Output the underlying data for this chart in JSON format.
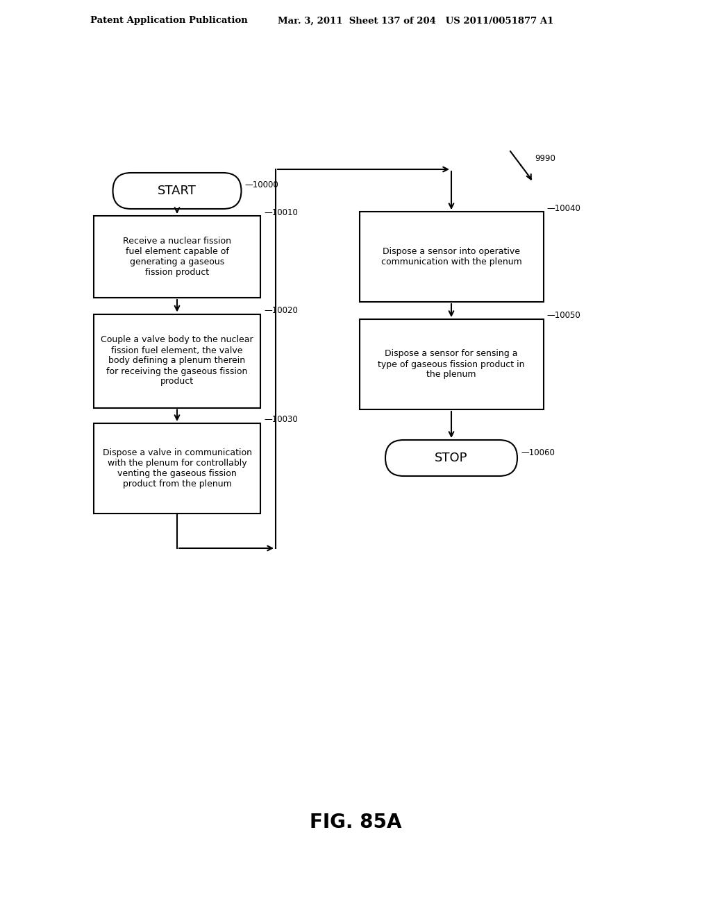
{
  "bg_color": "#ffffff",
  "header_left": "Patent Application Publication",
  "header_right": "Mar. 3, 2011  Sheet 137 of 204   US 2011/0051877 A1",
  "fig_label": "FIG. 85A",
  "start_label": "START",
  "stop_label": "STOP",
  "box10010_text": "Receive a nuclear fission\nfuel element capable of\ngenerating a gaseous\nfission product",
  "box10020_text": "Couple a valve body to the nuclear\nfission fuel element, the valve\nbody defining a plenum therein\nfor receiving the gaseous fission\nproduct",
  "box10030_text": "Dispose a valve in communication\nwith the plenum for controllably\nventing the gaseous fission\nproduct from the plenum",
  "box10040_text": "Dispose a sensor into operative\ncommunication with the plenum",
  "box10050_text": "Dispose a sensor for sensing a\ntype of gaseous fission product in\nthe plenum",
  "tag_10000": "10000",
  "tag_10010": "10010",
  "tag_10020": "10020",
  "tag_10030": "10030",
  "tag_10040": "10040",
  "tag_10050": "10050",
  "tag_10060": "10060",
  "tag_9990": "9990"
}
